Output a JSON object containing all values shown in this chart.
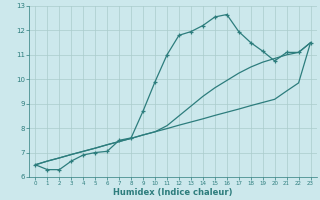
{
  "xlabel": "Humidex (Indice chaleur)",
  "bg_color": "#cce8ec",
  "line_color": "#2d7d7d",
  "grid_color": "#aacccc",
  "xlim": [
    -0.5,
    23.5
  ],
  "ylim": [
    6,
    13
  ],
  "xticks": [
    0,
    1,
    2,
    3,
    4,
    5,
    6,
    7,
    8,
    9,
    10,
    11,
    12,
    13,
    14,
    15,
    16,
    17,
    18,
    19,
    20,
    21,
    22,
    23
  ],
  "yticks": [
    6,
    7,
    8,
    9,
    10,
    11,
    12,
    13
  ],
  "curve_x": [
    0,
    1,
    2,
    3,
    4,
    5,
    6,
    7,
    8,
    9,
    10,
    11,
    12,
    13,
    14,
    15,
    16,
    17,
    18,
    19,
    20,
    21,
    22,
    23
  ],
  "curve_y": [
    6.5,
    6.3,
    6.3,
    6.65,
    6.9,
    7.0,
    7.05,
    7.5,
    7.6,
    8.7,
    9.9,
    11.0,
    11.8,
    11.95,
    12.2,
    12.55,
    12.65,
    11.95,
    11.5,
    11.15,
    10.75,
    11.1,
    11.1,
    11.5
  ],
  "straight1_x": [
    0,
    1,
    2,
    3,
    4,
    5,
    6,
    7,
    8,
    9,
    10,
    11,
    12,
    13,
    14,
    15,
    16,
    17,
    18,
    19,
    20,
    21,
    22,
    23
  ],
  "straight1_y": [
    6.5,
    6.65,
    6.78,
    6.92,
    7.05,
    7.18,
    7.32,
    7.45,
    7.58,
    7.72,
    7.85,
    7.98,
    8.12,
    8.25,
    8.38,
    8.52,
    8.65,
    8.78,
    8.92,
    9.05,
    9.18,
    9.52,
    9.85,
    11.5
  ],
  "straight2_x": [
    0,
    1,
    2,
    3,
    4,
    5,
    6,
    7,
    8,
    9,
    10,
    11,
    12,
    13,
    14,
    15,
    16,
    17,
    18,
    19,
    20,
    21,
    22,
    23
  ],
  "straight2_y": [
    6.5,
    6.65,
    6.78,
    6.92,
    7.05,
    7.18,
    7.32,
    7.45,
    7.58,
    7.72,
    7.85,
    8.1,
    8.5,
    8.9,
    9.3,
    9.65,
    9.95,
    10.25,
    10.5,
    10.7,
    10.85,
    11.0,
    11.1,
    11.5
  ],
  "font_color": "#2d7d7d"
}
